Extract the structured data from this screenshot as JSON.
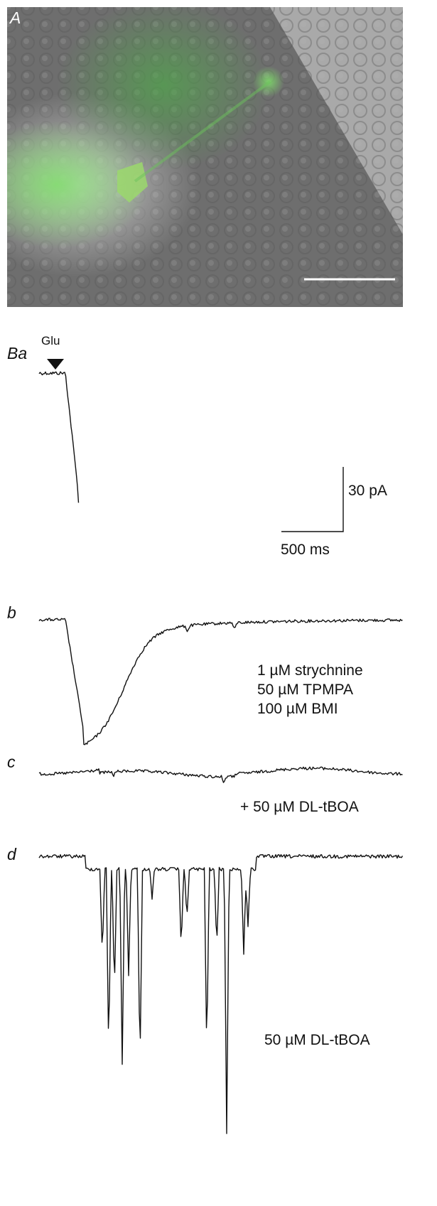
{
  "panels": [
    {
      "label": "A"
    },
    {
      "label": "Ba",
      "stimulus": "Glu",
      "scale_y": "30 pA",
      "scale_x": "500 ms"
    },
    {
      "label": "b",
      "conditions": [
        "1 µM strychnine",
        "50 µM TPMPA",
        "100 µM BMI"
      ]
    },
    {
      "label": "c",
      "conditions": [
        "+ 50 µM DL-tBOA"
      ]
    },
    {
      "label": "d",
      "conditions": [
        "50 µM DL-tBOA"
      ]
    }
  ]
}
